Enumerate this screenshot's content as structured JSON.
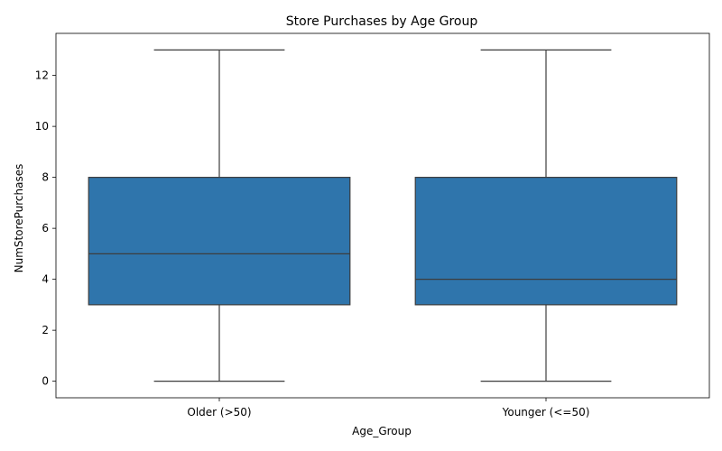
{
  "chart_data": {
    "type": "box",
    "title": "Store Purchases by Age Group",
    "xlabel": "Age_Group",
    "ylabel": "NumStorePurchases",
    "categories": [
      "Older (>50)",
      "Younger (<=50)"
    ],
    "boxes": [
      {
        "category": "Older (>50)",
        "min": 0,
        "q1": 3,
        "median": 5,
        "q3": 8,
        "max": 13
      },
      {
        "category": "Younger (<=50)",
        "min": 0,
        "q1": 3,
        "median": 4,
        "q3": 8,
        "max": 13
      }
    ],
    "ylim": [
      -0.65,
      13.65
    ],
    "yticks": [
      0,
      2,
      4,
      6,
      8,
      10,
      12
    ],
    "grid": false,
    "legend": "none",
    "box_color": "#2f75ac",
    "line_color": "#3d3d3d"
  }
}
